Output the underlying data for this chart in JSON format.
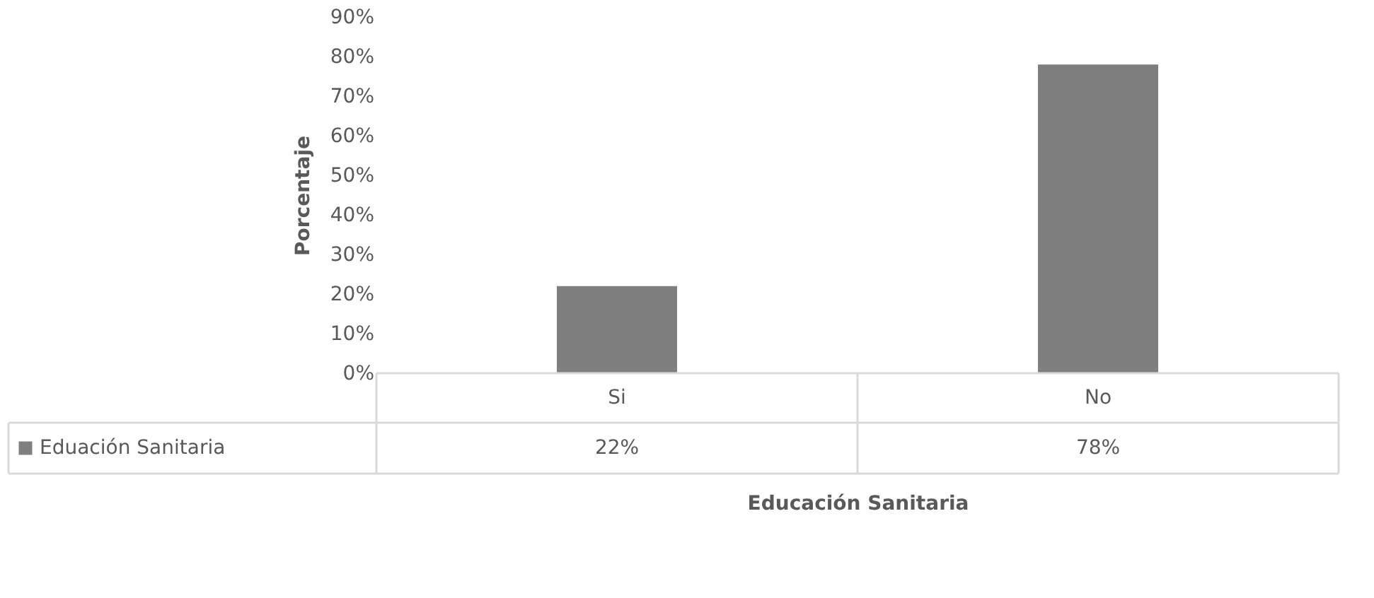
{
  "chart_data": {
    "type": "bar",
    "xlabel": "Educación Sanitaria",
    "ylabel": "Porcentaje",
    "categories": [
      "Si",
      "No"
    ],
    "series": [
      {
        "name": "Eduación Sanitaria",
        "color": "#7f7f7f",
        "values": [
          22,
          78
        ],
        "value_labels": [
          "22%",
          "78%"
        ]
      }
    ],
    "ylim": [
      0,
      90
    ],
    "yticks": [
      {
        "value": 0,
        "label": "0%"
      },
      {
        "value": 10,
        "label": "10%"
      },
      {
        "value": 20,
        "label": "20%"
      },
      {
        "value": 30,
        "label": "30%"
      },
      {
        "value": 40,
        "label": "40%"
      },
      {
        "value": 50,
        "label": "50%"
      },
      {
        "value": 60,
        "label": "60%"
      },
      {
        "value": 70,
        "label": "70%"
      },
      {
        "value": 80,
        "label": "80%"
      },
      {
        "value": 90,
        "label": "90%"
      }
    ],
    "grid": false,
    "legend": "bottom left"
  }
}
